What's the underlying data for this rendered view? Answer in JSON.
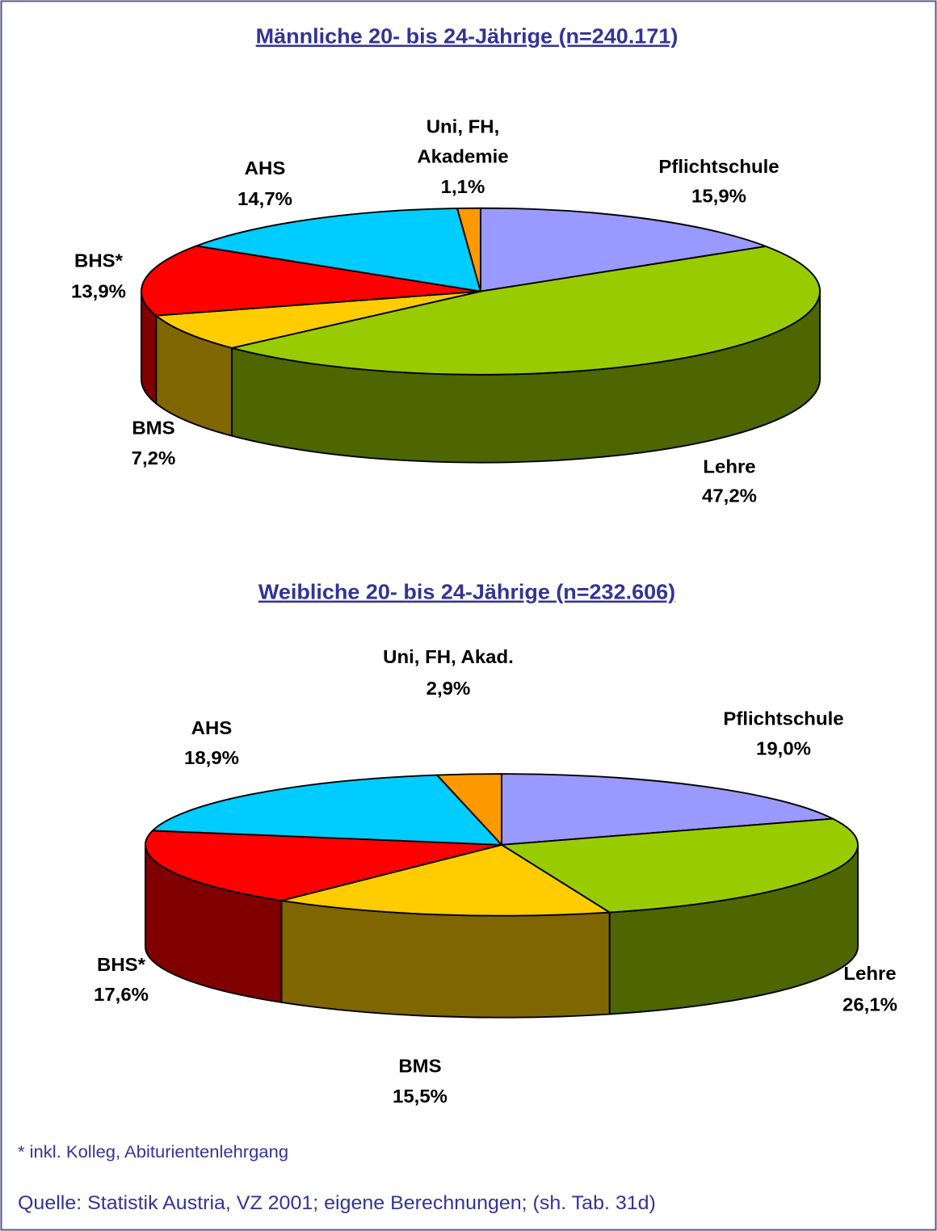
{
  "chart_data": [
    {
      "type": "pie",
      "title": "Männliche 20- bis 24-Jährige (n=240.171)",
      "categories": [
        "Pflichtschule",
        "Lehre",
        "BMS",
        "BHS*",
        "AHS",
        "Uni, FH, Akademie"
      ],
      "values": [
        15.9,
        47.2,
        7.2,
        13.9,
        14.7,
        1.1
      ],
      "value_labels": [
        "15,9%",
        "47,2%",
        "7,2%",
        "13,9%",
        "14,7%",
        "1,1%"
      ],
      "colors": [
        "#9999ff",
        "#99cc00",
        "#ffcc00",
        "#ff0000",
        "#00ccff",
        "#ff9900"
      ]
    },
    {
      "type": "pie",
      "title": "Weibliche 20- bis 24-Jährige (n=232.606)",
      "categories": [
        "Pflichtschule",
        "Lehre",
        "BMS",
        "BHS*",
        "AHS",
        "Uni, FH, Akad."
      ],
      "values": [
        19.0,
        26.1,
        15.5,
        17.6,
        18.9,
        2.9
      ],
      "value_labels": [
        "19,0%",
        "26,1%",
        "15,5%",
        "17,6%",
        "18,9%",
        "2,9%"
      ],
      "colors": [
        "#9999ff",
        "#99cc00",
        "#ffcc00",
        "#ff0000",
        "#00ccff",
        "#ff9900"
      ]
    }
  ],
  "footnote": "* inkl. Kolleg, Abiturientenlehrgang",
  "source": "Quelle: Statistik Austria, VZ 2001; eigene Berechnungen; (sh. Tab. 31d)"
}
